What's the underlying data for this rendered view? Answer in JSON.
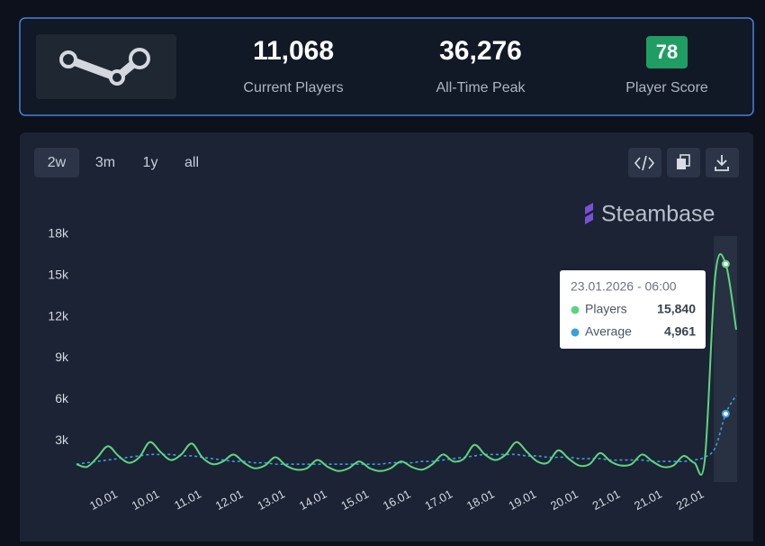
{
  "header": {
    "stats": [
      {
        "value": "11,068",
        "label": "Current Players"
      },
      {
        "value": "36,276",
        "label": "All-Time Peak"
      },
      {
        "value": "78",
        "label": "Player Score"
      }
    ]
  },
  "range_buttons": [
    "2w",
    "3m",
    "1y",
    "all"
  ],
  "brand": "Steambase",
  "chart_data": {
    "type": "line",
    "categories": [
      null,
      null,
      null,
      "10.01",
      null,
      null,
      null,
      "10.01",
      null,
      null,
      null,
      "11.01",
      null,
      null,
      null,
      "12.01",
      null,
      null,
      null,
      "13.01",
      null,
      null,
      null,
      "14.01",
      null,
      null,
      null,
      "15.01",
      null,
      null,
      null,
      "16.01",
      null,
      null,
      null,
      "17.01",
      null,
      null,
      null,
      "18.01",
      null,
      null,
      null,
      "19.01",
      null,
      null,
      null,
      "20.01",
      null,
      null,
      null,
      "21.01",
      null,
      null,
      null,
      "21.01",
      null,
      null,
      null,
      "22.01",
      null,
      null,
      null,
      null
    ],
    "series": [
      {
        "name": "Players",
        "color": "#5fd47f",
        "values": [
          1300,
          1100,
          1800,
          2600,
          1900,
          1400,
          1800,
          2900,
          2200,
          1600,
          2000,
          2800,
          1800,
          1300,
          1500,
          2000,
          1400,
          1000,
          1200,
          1800,
          1200,
          900,
          1000,
          1600,
          1100,
          800,
          1000,
          1500,
          1000,
          800,
          1000,
          1500,
          1100,
          900,
          1300,
          2000,
          1500,
          1700,
          2700,
          2000,
          1600,
          2000,
          2900,
          2200,
          1500,
          1400,
          2300,
          1700,
          1200,
          1300,
          2100,
          1500,
          1200,
          1300,
          2000,
          1500,
          1100,
          1200,
          1900,
          1400,
          1600,
          15000,
          15840,
          11068
        ]
      },
      {
        "name": "Average",
        "color": "#3a9fe0",
        "dashed": true,
        "values": [
          1300,
          1400,
          1500,
          1600,
          1700,
          1800,
          1900,
          2000,
          2000,
          2000,
          1900,
          1900,
          1800,
          1700,
          1600,
          1500,
          1500,
          1400,
          1400,
          1300,
          1300,
          1300,
          1300,
          1300,
          1300,
          1300,
          1300,
          1300,
          1300,
          1300,
          1400,
          1400,
          1400,
          1500,
          1500,
          1600,
          1700,
          1800,
          1900,
          2000,
          2000,
          2000,
          2000,
          1900,
          1900,
          1800,
          1800,
          1800,
          1700,
          1700,
          1700,
          1600,
          1600,
          1600,
          1600,
          1500,
          1500,
          1500,
          1500,
          1600,
          1800,
          2500,
          4961,
          6300
        ]
      }
    ],
    "ylim": [
      0,
      18000
    ],
    "yticks": [
      {
        "value": 3000,
        "label": "3k"
      },
      {
        "value": 6000,
        "label": "6k"
      },
      {
        "value": 9000,
        "label": "9k"
      },
      {
        "value": 12000,
        "label": "12k"
      },
      {
        "value": 15000,
        "label": "15k"
      },
      {
        "value": 18000,
        "label": "18k"
      }
    ],
    "tooltip": {
      "date": "23.01.2026 - 06:00",
      "index": 62,
      "values": [
        "15,840",
        "4,961"
      ]
    }
  }
}
